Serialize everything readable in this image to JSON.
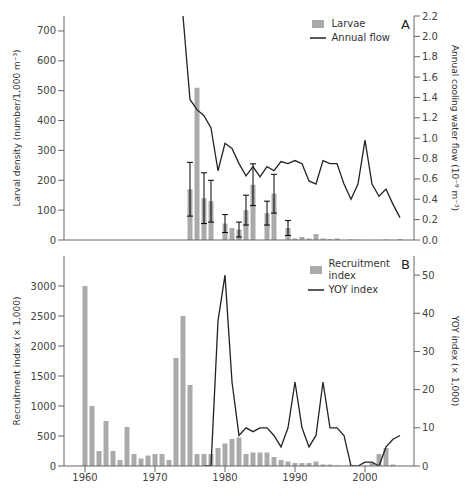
{
  "chart_data": [
    {
      "type": "bar",
      "annotations": [
        "A"
      ],
      "x": [
        1959,
        1960,
        1961,
        1962,
        1963,
        1964,
        1965,
        1966,
        1967,
        1968,
        1969,
        1970,
        1971,
        1972,
        1973,
        1974,
        1975,
        1976,
        1977,
        1978,
        1979,
        1980,
        1981,
        1982,
        1983,
        1984,
        1985,
        1986,
        1987,
        1988,
        1989,
        1990,
        1991,
        1992,
        1993,
        1994,
        1995,
        1996,
        1997,
        1998,
        1999,
        2000,
        2001,
        2002,
        2003,
        2004,
        2005
      ],
      "xlim": [
        1957,
        2007
      ],
      "xticks": [
        1960,
        1970,
        1980,
        1990,
        2000
      ],
      "tick_labels": "y",
      "ylabel": "Larval density (number/1,000 m⁻³)",
      "y2label": "Annual cooling water flow (10⁻⁹ m⁻³)",
      "ylim": [
        0,
        750
      ],
      "yticks": [
        0,
        100,
        200,
        300,
        400,
        500,
        600,
        700
      ],
      "y2lim": [
        0,
        2.2
      ],
      "y2ticks": [
        {
          "value": 0.0,
          "label": "0.0"
        },
        0.2,
        0.4,
        0.6,
        0.8,
        {
          "value": 1.0,
          "label": "1.0"
        },
        1.2,
        1.4,
        1.6,
        1.8,
        {
          "value": 2.0,
          "label": "2.0"
        },
        2.2
      ],
      "grid": false,
      "legend": "upper right",
      "series": [
        {
          "name": "Larvae",
          "type": "bar",
          "color": "#aaaaaa",
          "values": [
            0,
            0,
            0,
            0,
            0,
            0,
            0,
            0,
            0,
            0,
            0,
            0,
            0,
            0,
            0,
            0,
            170,
            510,
            140,
            130,
            0,
            55,
            40,
            35,
            100,
            185,
            0,
            90,
            155,
            0,
            40,
            5,
            10,
            5,
            20,
            5,
            3,
            5,
            0,
            2,
            1,
            0,
            0,
            0,
            1,
            0,
            3
          ],
          "error": [
            0,
            0,
            0,
            0,
            0,
            0,
            0,
            0,
            0,
            0,
            0,
            0,
            0,
            0,
            0,
            0,
            90,
            0,
            85,
            70,
            0,
            30,
            0,
            25,
            50,
            70,
            0,
            40,
            65,
            0,
            25,
            0,
            0,
            0,
            0,
            0,
            0,
            0,
            0,
            0,
            0,
            0,
            0,
            0,
            0,
            0,
            0
          ]
        },
        {
          "name": "Annual flow",
          "type": "line",
          "color": "#222222",
          "axis": "y2",
          "values": [
            null,
            null,
            null,
            null,
            null,
            null,
            null,
            null,
            null,
            null,
            null,
            null,
            null,
            null,
            null,
            2.2,
            1.38,
            1.28,
            1.22,
            1.1,
            0.68,
            0.95,
            0.9,
            0.75,
            0.63,
            0.72,
            0.62,
            0.72,
            0.68,
            0.77,
            0.75,
            0.78,
            0.75,
            0.58,
            0.55,
            0.78,
            0.75,
            0.75,
            0.55,
            0.4,
            0.55,
            0.98,
            0.55,
            0.43,
            0.5,
            0.35,
            0.22
          ]
        }
      ]
    },
    {
      "type": "bar",
      "annotations": [
        "B"
      ],
      "x": [
        1959,
        1960,
        1961,
        1962,
        1963,
        1964,
        1965,
        1966,
        1967,
        1968,
        1969,
        1970,
        1971,
        1972,
        1973,
        1974,
        1975,
        1976,
        1977,
        1978,
        1979,
        1980,
        1981,
        1982,
        1983,
        1984,
        1985,
        1986,
        1987,
        1988,
        1989,
        1990,
        1991,
        1992,
        1993,
        1994,
        1995,
        1996,
        1997,
        1998,
        1999,
        2000,
        2001,
        2002,
        2003,
        2004,
        2005
      ],
      "xlim": [
        1957,
        2007
      ],
      "xticks": [
        1960,
        1970,
        1980,
        1990,
        2000
      ],
      "ylabel": "Recruitment index (× 1,000)",
      "y2label": "YOY index (× 1,000)",
      "ylim": [
        0,
        3500
      ],
      "yticks": [
        0,
        500,
        1000,
        1500,
        2000,
        2500,
        3000
      ],
      "y2lim": [
        0,
        55
      ],
      "y2ticks": [
        0,
        10,
        20,
        30,
        40,
        50
      ],
      "grid": false,
      "legend": "upper right",
      "series": [
        {
          "name": "Recruitment\nindex",
          "type": "bar",
          "color": "#aaaaaa",
          "values": [
            0,
            3000,
            1000,
            250,
            750,
            250,
            100,
            650,
            200,
            125,
            175,
            200,
            200,
            100,
            1800,
            2500,
            1350,
            200,
            200,
            200,
            300,
            375,
            450,
            475,
            200,
            225,
            225,
            225,
            150,
            100,
            75,
            50,
            50,
            50,
            75,
            25,
            25,
            10,
            5,
            20,
            5,
            5,
            50,
            200,
            300,
            25,
            0
          ]
        },
        {
          "name": "YOY index",
          "type": "line",
          "color": "#222222",
          "axis": "y2",
          "values": [
            null,
            null,
            null,
            null,
            null,
            null,
            null,
            null,
            null,
            null,
            null,
            null,
            null,
            null,
            null,
            null,
            null,
            null,
            0,
            0,
            38,
            50,
            22,
            8,
            10,
            9,
            10,
            10,
            8,
            5,
            10,
            22,
            10,
            5,
            8,
            22,
            10,
            10,
            8,
            0,
            0,
            1,
            1,
            0,
            5,
            7,
            8
          ]
        }
      ]
    }
  ]
}
